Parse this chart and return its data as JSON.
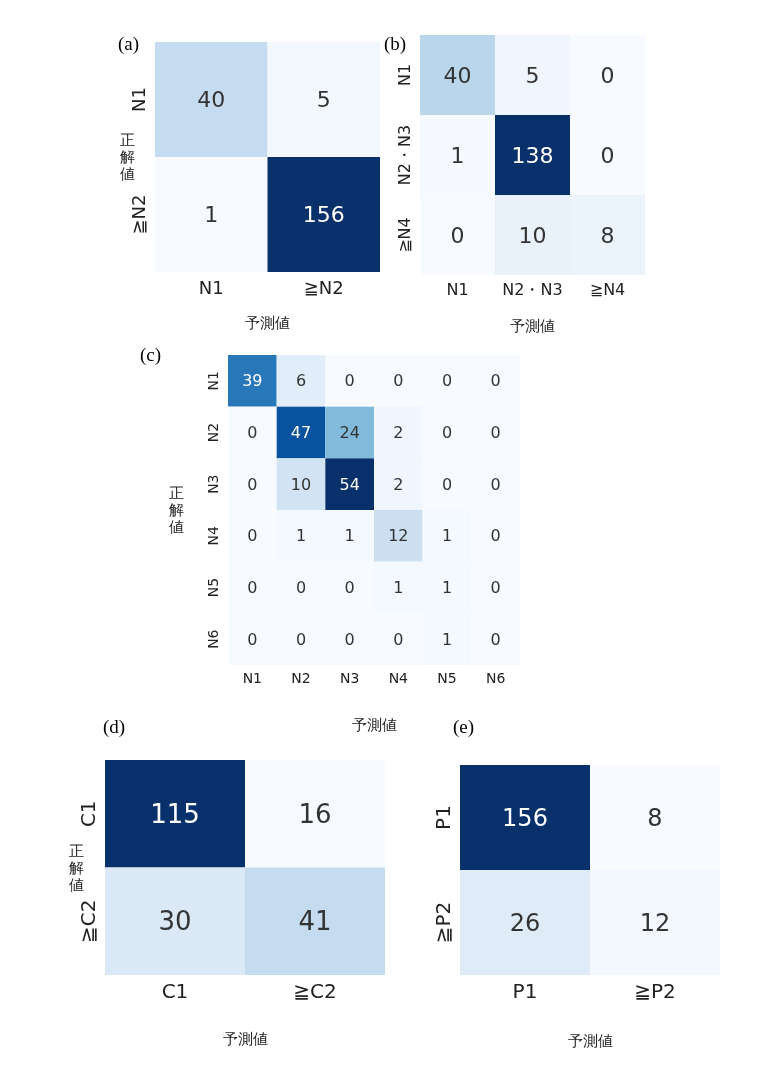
{
  "chart_data": [
    {
      "type": "heatmap",
      "title": "(a)",
      "categories": [
        "N1",
        "≧N2"
      ],
      "y_categories": [
        "N1",
        "≧N2"
      ],
      "cells": [
        [
          40,
          5
        ],
        [
          1,
          156
        ]
      ],
      "xlabel": "予測値",
      "ylabel": "正解値",
      "data_labels": true
    },
    {
      "type": "heatmap",
      "title": "(b)",
      "categories": [
        "N1",
        "N2・N3",
        "≧N4"
      ],
      "y_categories": [
        "N1",
        "N2・N3",
        "≧N4"
      ],
      "cells": [
        [
          40,
          5,
          0
        ],
        [
          1,
          138,
          0
        ],
        [
          0,
          10,
          8
        ]
      ],
      "xlabel": "予測値",
      "data_labels": true
    },
    {
      "type": "heatmap",
      "title": "(c)",
      "categories": [
        "N1",
        "N2",
        "N3",
        "N4",
        "N5",
        "N6"
      ],
      "y_categories": [
        "N1",
        "N2",
        "N3",
        "N4",
        "N5",
        "N6"
      ],
      "cells": [
        [
          39,
          6,
          0,
          0,
          0,
          0
        ],
        [
          0,
          47,
          24,
          2,
          0,
          0
        ],
        [
          0,
          10,
          54,
          2,
          0,
          0
        ],
        [
          0,
          1,
          1,
          12,
          1,
          0
        ],
        [
          0,
          0,
          0,
          1,
          1,
          0
        ],
        [
          0,
          0,
          0,
          0,
          1,
          0
        ]
      ],
      "xlabel": "予測値",
      "ylabel": "正解値",
      "data_labels": true
    },
    {
      "type": "heatmap",
      "title": "(d)",
      "categories": [
        "C1",
        "≧C2"
      ],
      "y_categories": [
        "C1",
        "≧C2"
      ],
      "cells": [
        [
          115,
          16
        ],
        [
          30,
          41
        ]
      ],
      "xlabel": "予測値",
      "ylabel": "正解値",
      "data_labels": true
    },
    {
      "type": "heatmap",
      "title": "(e)",
      "categories": [
        "P1",
        "≧P2"
      ],
      "y_categories": [
        "P1",
        "≧P2"
      ],
      "cells": [
        [
          156,
          8
        ],
        [
          26,
          12
        ]
      ],
      "xlabel": "予測値",
      "data_labels": true
    }
  ]
}
